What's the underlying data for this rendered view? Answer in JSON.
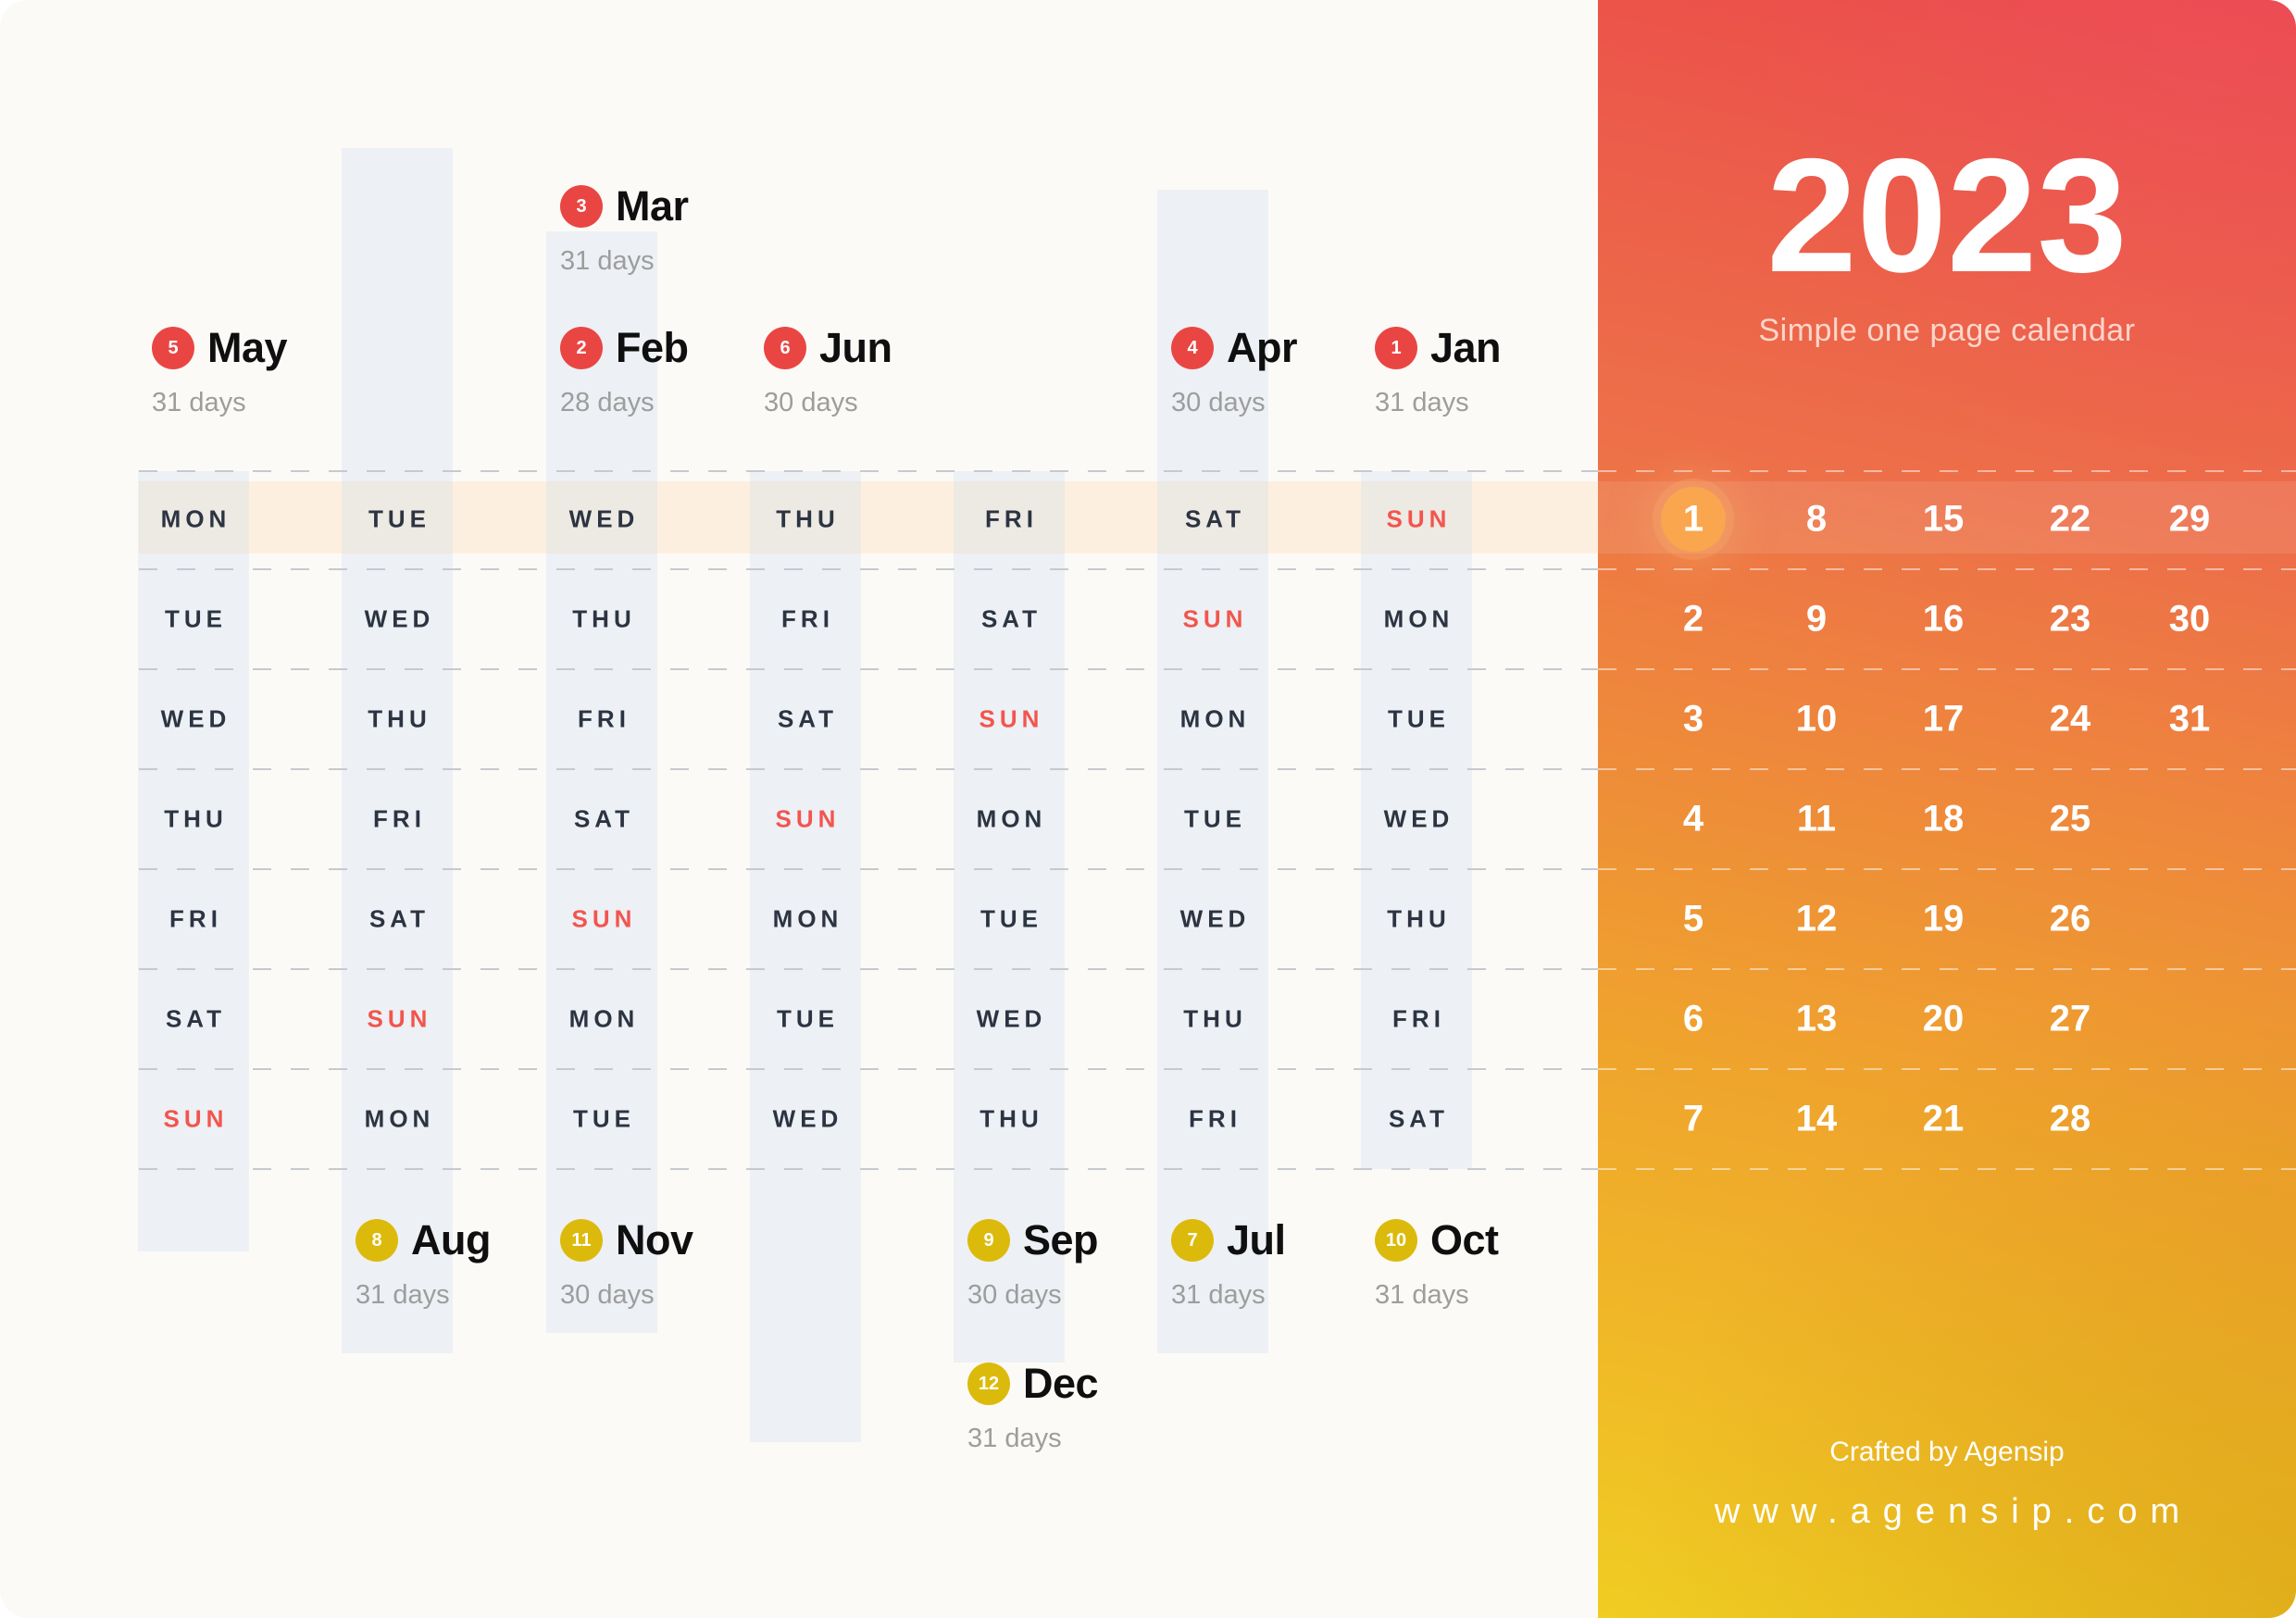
{
  "page": {
    "title": "2023",
    "subtitle": "Simple one page calendar"
  },
  "footer": {
    "credit": "Crafted by Agensip",
    "website": "www.agensip.com"
  },
  "colors": {
    "badge_red": "#e94643",
    "badge_yellow": "#dcba0b",
    "sunday_red": "#f2554e",
    "header_band_peach": "#fdefdf",
    "column_stripe": "rgba(203,217,238,0.30)",
    "gradient_top_red": "#eb4a4a",
    "gradient_orange_1": "#ed6f49",
    "gradient_orange_2": "#efa22d",
    "gradient_bottom_yellow": "#f0cd22",
    "date_highlight_circle": "#f9a64e"
  },
  "weekday_grid": {
    "highlighted_row_index": 0,
    "rows": [
      [
        "MON",
        "TUE",
        "WED",
        "THU",
        "FRI",
        "SAT",
        "SUN"
      ],
      [
        "TUE",
        "WED",
        "THU",
        "FRI",
        "SAT",
        "SUN",
        "MON"
      ],
      [
        "WED",
        "THU",
        "FRI",
        "SAT",
        "SUN",
        "MON",
        "TUE"
      ],
      [
        "THU",
        "FRI",
        "SAT",
        "SUN",
        "MON",
        "TUE",
        "WED"
      ],
      [
        "FRI",
        "SAT",
        "SUN",
        "MON",
        "TUE",
        "WED",
        "THU"
      ],
      [
        "SAT",
        "SUN",
        "MON",
        "TUE",
        "WED",
        "THU",
        "FRI"
      ],
      [
        "SUN",
        "MON",
        "TUE",
        "WED",
        "THU",
        "FRI",
        "SAT"
      ]
    ]
  },
  "months": [
    {
      "num": "3",
      "name": "Mar",
      "days": "31 days",
      "column": 3,
      "tier": "top-high",
      "badge": "red"
    },
    {
      "num": "5",
      "name": "May",
      "days": "31 days",
      "column": 1,
      "tier": "top",
      "badge": "red"
    },
    {
      "num": "2",
      "name": "Feb",
      "days": "28 days",
      "column": 3,
      "tier": "top",
      "badge": "red"
    },
    {
      "num": "6",
      "name": "Jun",
      "days": "30 days",
      "column": 4,
      "tier": "top",
      "badge": "red"
    },
    {
      "num": "4",
      "name": "Apr",
      "days": "30 days",
      "column": 6,
      "tier": "top",
      "badge": "red"
    },
    {
      "num": "1",
      "name": "Jan",
      "days": "31 days",
      "column": 7,
      "tier": "top",
      "badge": "red"
    },
    {
      "num": "8",
      "name": "Aug",
      "days": "31 days",
      "column": 2,
      "tier": "bottom",
      "badge": "yellow"
    },
    {
      "num": "11",
      "name": "Nov",
      "days": "30 days",
      "column": 3,
      "tier": "bottom",
      "badge": "yellow"
    },
    {
      "num": "9",
      "name": "Sep",
      "days": "30 days",
      "column": 5,
      "tier": "bottom",
      "badge": "yellow"
    },
    {
      "num": "7",
      "name": "Jul",
      "days": "31 days",
      "column": 6,
      "tier": "bottom",
      "badge": "yellow"
    },
    {
      "num": "10",
      "name": "Oct",
      "days": "31 days",
      "column": 7,
      "tier": "bottom",
      "badge": "yellow"
    },
    {
      "num": "12",
      "name": "Dec",
      "days": "31 days",
      "column": 5,
      "tier": "bottom-low",
      "badge": "yellow"
    }
  ],
  "date_grid": {
    "highlighted_date": 1,
    "rows": [
      [
        1,
        8,
        15,
        22,
        29
      ],
      [
        2,
        9,
        16,
        23,
        30
      ],
      [
        3,
        10,
        17,
        24,
        31
      ],
      [
        4,
        11,
        18,
        25
      ],
      [
        5,
        12,
        19,
        26
      ],
      [
        6,
        13,
        20,
        27
      ],
      [
        7,
        14,
        21,
        28
      ]
    ]
  }
}
